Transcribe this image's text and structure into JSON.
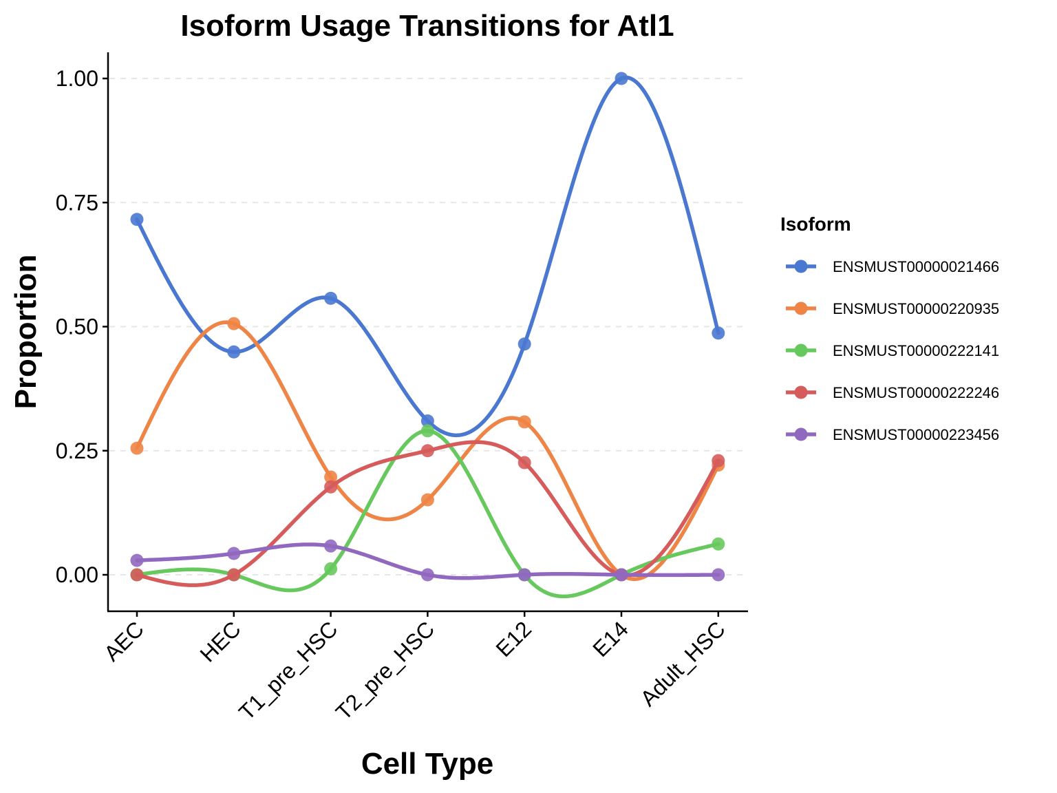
{
  "chart_data": {
    "type": "line",
    "title": "Isoform Usage Transitions for Atl1",
    "xlabel": "Cell Type",
    "ylabel": "Proportion",
    "categories": [
      "AEC",
      "HEC",
      "T1_pre_HSC",
      "T2_pre_HSC",
      "E12",
      "E14",
      "Adult_HSC"
    ],
    "ylim": [
      -0.075,
      1.055
    ],
    "yticks": [
      0,
      0.25,
      0.5,
      0.75,
      1
    ],
    "ytick_labels": [
      "0.00",
      "0.25",
      "0.50",
      "0.75",
      "1.00"
    ],
    "grid": "horizontal-major-dashed",
    "legend": {
      "title": "Isoform",
      "placement": "right"
    },
    "series": [
      {
        "name": "ENSMUST00000021466",
        "color": "#4a78d1",
        "values": [
          0.716,
          0.449,
          0.557,
          0.31,
          0.465,
          1.0,
          0.487
        ]
      },
      {
        "name": "ENSMUST00000220935",
        "color": "#ee8445",
        "values": [
          0.255,
          0.506,
          0.197,
          0.151,
          0.308,
          0.0,
          0.221
        ]
      },
      {
        "name": "ENSMUST00000222141",
        "color": "#67c95d",
        "values": [
          0.0,
          0.0,
          0.012,
          0.29,
          0.0,
          0.0,
          0.062
        ]
      },
      {
        "name": "ENSMUST00000222246",
        "color": "#d65c5c",
        "values": [
          0.0,
          0.0,
          0.177,
          0.25,
          0.226,
          0.0,
          0.23
        ]
      },
      {
        "name": "ENSMUST00000223456",
        "color": "#9168bf",
        "values": [
          0.029,
          0.043,
          0.058,
          0.0,
          0.0,
          0.0,
          0.0
        ]
      }
    ]
  }
}
